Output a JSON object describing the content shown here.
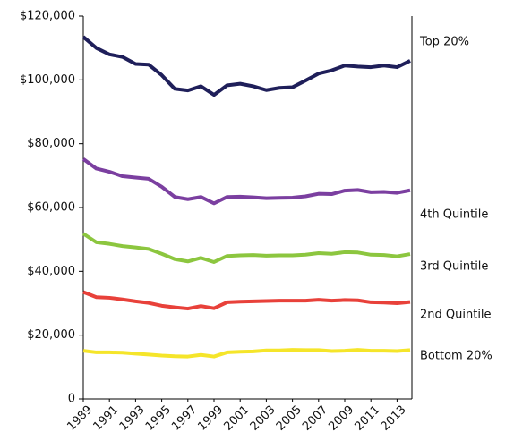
{
  "chart_data": {
    "type": "line",
    "x": [
      1989,
      1990,
      1991,
      1992,
      1993,
      1994,
      1995,
      1996,
      1997,
      1998,
      1999,
      2000,
      2001,
      2002,
      2003,
      2004,
      2005,
      2006,
      2007,
      2008,
      2009,
      2010,
      2011,
      2012,
      2013,
      2014
    ],
    "xlim": [
      1989,
      2014
    ],
    "xticks": [
      1989,
      1991,
      1993,
      1995,
      1997,
      1999,
      2001,
      2003,
      2005,
      2007,
      2009,
      2011,
      2013
    ],
    "ylim": [
      0,
      120000
    ],
    "yticks": [
      0,
      {
        "value": 20000,
        "label": "$20,000"
      },
      {
        "value": 40000,
        "label": "$40,000"
      },
      {
        "value": 60000,
        "label": "$60,000"
      },
      {
        "value": 80000,
        "label": "$80,000"
      },
      {
        "value": 100000,
        "label": "$100,000"
      },
      {
        "value": 120000,
        "label": "$120,000"
      }
    ],
    "grid": false,
    "series": [
      {
        "name": "Top 20%",
        "color": "#1f1f5a",
        "values": [
          113500,
          110000,
          108000,
          107200,
          105000,
          104800,
          101500,
          97200,
          96700,
          98000,
          95300,
          98300,
          98800,
          98000,
          96800,
          97500,
          97700,
          99800,
          102000,
          103000,
          104500,
          104200,
          104000,
          104500,
          104000,
          106000
        ]
      },
      {
        "name": "4th Quintile",
        "color": "#7b3fa0",
        "values": [
          75200,
          72200,
          71200,
          69800,
          69400,
          69000,
          66500,
          63300,
          62600,
          63300,
          61300,
          63300,
          63400,
          63200,
          62900,
          63000,
          63100,
          63500,
          64300,
          64200,
          65300,
          65500,
          64800,
          64900,
          64600,
          65400
        ]
      },
      {
        "name": "3rd Quintile",
        "color": "#8cc63f",
        "values": [
          51800,
          49100,
          48600,
          47900,
          47500,
          47000,
          45500,
          43800,
          43100,
          44200,
          42900,
          44800,
          45000,
          45100,
          44900,
          45000,
          45000,
          45200,
          45700,
          45500,
          46000,
          45900,
          45200,
          45100,
          44700,
          45400
        ]
      },
      {
        "name": "2nd Quintile",
        "color": "#e8413a",
        "values": [
          33500,
          31900,
          31700,
          31200,
          30600,
          30100,
          29200,
          28700,
          28300,
          29100,
          28400,
          30300,
          30500,
          30600,
          30700,
          30800,
          30800,
          30800,
          31100,
          30800,
          31000,
          30900,
          30300,
          30200,
          30000,
          30400
        ]
      },
      {
        "name": "Bottom 20%",
        "color": "#f5e52a",
        "values": [
          15100,
          14600,
          14600,
          14500,
          14200,
          13900,
          13600,
          13400,
          13300,
          13800,
          13300,
          14600,
          14800,
          14900,
          15200,
          15200,
          15400,
          15300,
          15300,
          15000,
          15100,
          15400,
          15100,
          15100,
          15000,
          15300
        ]
      }
    ]
  }
}
